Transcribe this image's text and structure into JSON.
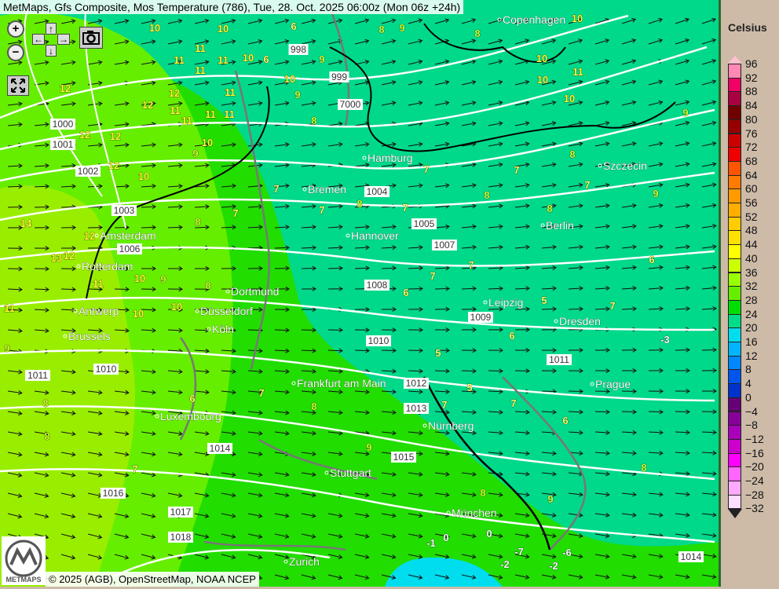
{
  "title": "MetMaps, Gfs Composite, Mos Temperature (786), Tue, 28. Oct. 2025 06:00z (Mon 06z +24h)",
  "controls": {
    "zoom_in": "+",
    "zoom_out": "−",
    "pan_up": "↑",
    "pan_down": "↓",
    "pan_left": "←",
    "pan_right": "→",
    "icons": [
      "zoom-in-icon",
      "zoom-out-icon",
      "arrow-up-icon",
      "arrow-down-icon",
      "arrow-left-icon",
      "arrow-right-icon",
      "camera-icon",
      "fullscreen-icon"
    ]
  },
  "legend": {
    "title": "Celsius",
    "labels": [
      "96",
      "92",
      "88",
      "84",
      "80",
      "76",
      "72",
      "68",
      "64",
      "60",
      "56",
      "52",
      "48",
      "44",
      "40",
      "36",
      "32",
      "28",
      "24",
      "20",
      "16",
      "12",
      "8",
      "4",
      "0",
      "−4",
      "−8",
      "−12",
      "−16",
      "−20",
      "−24",
      "−28",
      "−32"
    ],
    "colors": [
      "#ff88b4",
      "#ee0066",
      "#a80040",
      "#700000",
      "#980000",
      "#cc0000",
      "#ee0000",
      "#ff5500",
      "#ff7a00",
      "#ff9a00",
      "#ffae00",
      "#ffcc00",
      "#ffe000",
      "#ffff00",
      "#ccff00",
      "#99ff00",
      "#66ee00",
      "#00dd00",
      "#00dd88",
      "#00ddee",
      "#00b4ff",
      "#0088ff",
      "#0055ee",
      "#0033cc",
      "#660077",
      "#880099",
      "#aa00bb",
      "#cc00cc",
      "#ff00ff",
      "#ff66ff",
      "#ffaaff",
      "#ffddff"
    ],
    "top_arrow_color": "#ffc0d0",
    "bottom_arrow_color": "#ffffff"
  },
  "cities": [
    "Copenhagen",
    "Szczecin",
    "Hamburg",
    "Bremen",
    "Berlin",
    "Hannover",
    "Amsterdam",
    "Rotterdam",
    "Antwerp",
    "Brussels",
    "Dortmund",
    "Düsseldorf",
    "Köln",
    "Leipzig",
    "Dresden",
    "Frankfurt am Main",
    "Prague",
    "Luxembourg",
    "Nürnberg",
    "Stuttgart",
    "München",
    "Zurich"
  ],
  "isobars": [
    "998",
    "999",
    "1000",
    "1001",
    "1002",
    "1004",
    "1005",
    "1007",
    "1008",
    "1009",
    "1010",
    "1011",
    "1012",
    "1013",
    "1014",
    "1015",
    "1016",
    "1017",
    "1018",
    "1003",
    "1006",
    "7000",
    "1010",
    "1011",
    "1014"
  ],
  "temperatures": [
    "10",
    "10",
    "8",
    "6",
    "9",
    "6",
    "9",
    "8",
    "10",
    "11",
    "11",
    "11",
    "10",
    "9",
    "10",
    "12",
    "12",
    "12",
    "11",
    "11",
    "10",
    "9",
    "8",
    "10",
    "12",
    "12",
    "11",
    "12",
    "14",
    "12",
    "13",
    "12",
    "11",
    "11",
    "10",
    "10",
    "9",
    "10",
    "8",
    "8",
    "7",
    "7",
    "7",
    "8",
    "7",
    "7",
    "8",
    "7",
    "8",
    "7",
    "8",
    "9",
    "9",
    "7",
    "6",
    "7",
    "6",
    "5",
    "7",
    "6",
    "5",
    "5",
    "7",
    "6",
    "-3",
    "-1",
    "0",
    "0",
    "-2",
    "-6",
    "-7",
    "-2",
    "7",
    "8",
    "9",
    "10",
    "10",
    "10",
    "11",
    "11",
    "11",
    "11",
    "9",
    "8",
    "8",
    "7",
    "6",
    "7",
    "8",
    "9",
    "8"
  ],
  "footer": "© 2025 (AGB), OpenStreetMap, NOAA NCEP",
  "logo_text": "METMAPS",
  "colors": {
    "yellow_green": "#99ee00",
    "green": "#22dd00",
    "teal": "#00d98a",
    "cyan": "#00ddee",
    "isobar": "#ffffff",
    "temp_text": "#ffff33"
  }
}
